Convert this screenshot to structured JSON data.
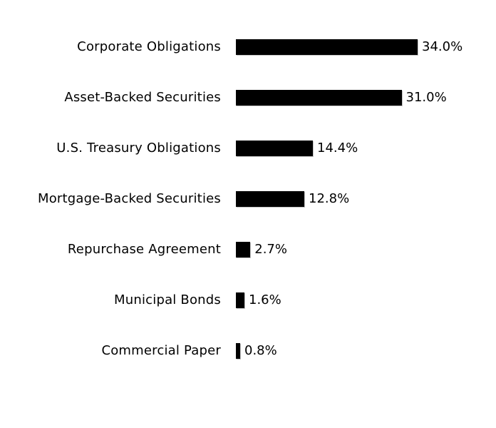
{
  "chart_data": {
    "type": "bar",
    "orientation": "horizontal",
    "title": "",
    "xlabel": "",
    "ylabel": "",
    "categories": [
      "Corporate Obligations",
      "Asset-Backed Securities",
      "U.S. Treasury Obligations",
      "Mortgage-Backed Securities",
      "Repurchase Agreement",
      "Municipal Bonds",
      "Commercial Paper"
    ],
    "values": [
      34.0,
      31.0,
      14.4,
      12.8,
      2.7,
      1.6,
      0.8
    ],
    "value_labels": [
      "34.0%",
      "31.0%",
      "14.4%",
      "12.8%",
      "2.7%",
      "1.6%",
      "0.8%"
    ],
    "xlim": [
      0,
      34
    ],
    "grid": false,
    "legend": false,
    "axes_visible": false,
    "bar_color": "#000000",
    "text_color": "#000000",
    "background_color": "#ffffff"
  }
}
